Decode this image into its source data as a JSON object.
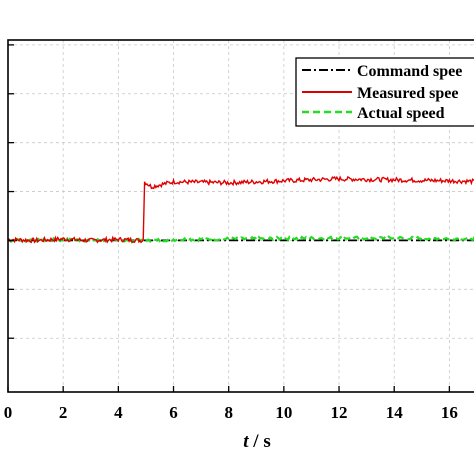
{
  "chart_data": {
    "type": "line",
    "title": "",
    "xlabel": {
      "italic": "t",
      "rest": " / s"
    },
    "ylabel": "",
    "xlim": [
      0,
      17.4
    ],
    "ylim": [
      -3.1,
      4.1
    ],
    "x_ticks": [
      0,
      2,
      4,
      6,
      8,
      10,
      12,
      14,
      16
    ],
    "y_ticks": [
      -2,
      -1,
      0,
      1,
      2,
      3,
      4
    ],
    "y_tick_labels_visible": false,
    "grid": true,
    "legend_position": "top-right",
    "series": [
      {
        "name": "Command speed",
        "color": "#000000",
        "style": "dash-dot",
        "points": [
          [
            0,
            0
          ],
          [
            17.4,
            0
          ]
        ]
      },
      {
        "name": "Measured speed",
        "color": "#e00000",
        "style": "solid",
        "points": [
          [
            0,
            0.02
          ],
          [
            1,
            0.0
          ],
          [
            2,
            0.03
          ],
          [
            3,
            0.0
          ],
          [
            4,
            0.02
          ],
          [
            4.9,
            0.0
          ],
          [
            4.95,
            1.2
          ],
          [
            5.2,
            1.1
          ],
          [
            6,
            1.2
          ],
          [
            8,
            1.18
          ],
          [
            10,
            1.22
          ],
          [
            12,
            1.26
          ],
          [
            14,
            1.24
          ],
          [
            16,
            1.22
          ],
          [
            17.4,
            1.2
          ]
        ]
      },
      {
        "name": "Actual speed",
        "color": "#22dd22",
        "style": "dashed",
        "points": [
          [
            0,
            0.0
          ],
          [
            2,
            0.01
          ],
          [
            4,
            0.0
          ],
          [
            5,
            -0.01
          ],
          [
            6,
            0.02
          ],
          [
            8,
            0.03
          ],
          [
            10,
            0.04
          ],
          [
            12,
            0.05
          ],
          [
            14,
            0.05
          ],
          [
            16,
            0.04
          ],
          [
            17.4,
            0.04
          ]
        ]
      }
    ],
    "legend": [
      "Command spee",
      "Measured spee",
      "Actual speed"
    ]
  }
}
